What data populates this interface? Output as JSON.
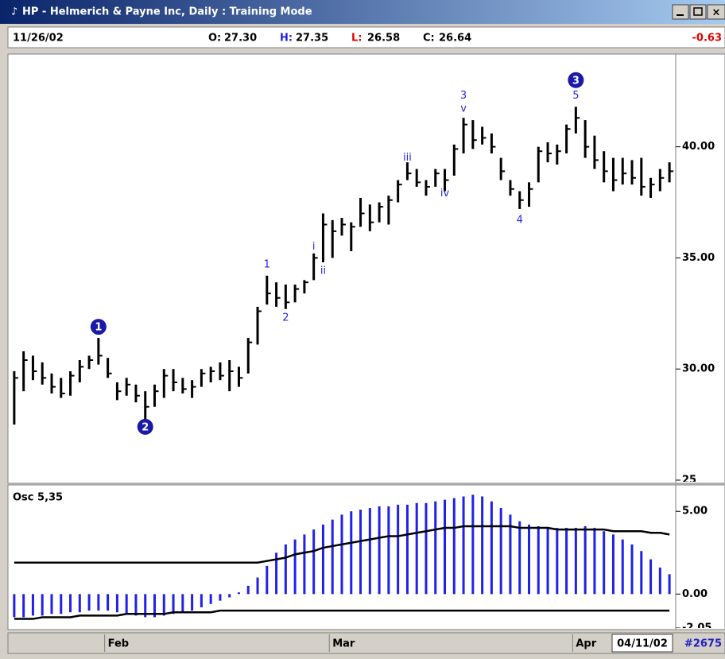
{
  "window": {
    "title": "HP - Helmerich & Payne Inc, Daily : Training Mode"
  },
  "info": {
    "date": "11/26/02",
    "fields": [
      {
        "label": "O:",
        "value": "27.30"
      },
      {
        "label": "H:",
        "value": "27.35"
      },
      {
        "label": "L:",
        "value": "26.58"
      },
      {
        "label": "C:",
        "value": "26.64"
      }
    ],
    "change": "-0.63"
  },
  "footer": {
    "date": "04/11/02",
    "count": "#2675"
  },
  "chart_data": [
    {
      "type": "ohlc",
      "color": "#000000",
      "categories": [
        null,
        null,
        null,
        null,
        null,
        null,
        null,
        null,
        null,
        null,
        "Feb",
        null,
        null,
        null,
        null,
        null,
        null,
        null,
        null,
        null,
        null,
        null,
        null,
        null,
        null,
        null,
        null,
        null,
        null,
        null,
        null,
        null,
        null,
        null,
        "Mar",
        null,
        null,
        null,
        null,
        null,
        null,
        null,
        null,
        null,
        null,
        null,
        null,
        null,
        null,
        null,
        null,
        null,
        null,
        null,
        null,
        null,
        null,
        null,
        null,
        null,
        "Apr",
        null,
        null,
        null,
        null,
        null,
        null,
        null,
        null,
        null,
        null
      ],
      "high": [
        29.9,
        30.8,
        30.6,
        30.3,
        29.8,
        29.6,
        29.9,
        30.4,
        30.6,
        31.4,
        30.5,
        29.4,
        29.6,
        29.3,
        29.0,
        29.3,
        30.0,
        30.0,
        29.6,
        29.5,
        30.0,
        30.1,
        30.3,
        30.4,
        30.1,
        31.4,
        32.8,
        34.2,
        33.9,
        33.8,
        33.8,
        34.0,
        35.2,
        37.0,
        36.7,
        36.8,
        36.6,
        37.7,
        37.4,
        37.5,
        37.8,
        38.5,
        39.3,
        39.0,
        38.5,
        39.0,
        39.0,
        40.1,
        41.3,
        41.2,
        40.9,
        40.6,
        39.5,
        38.5,
        38.0,
        38.4,
        40.0,
        40.2,
        40.1,
        41.0,
        41.8,
        41.2,
        40.5,
        39.8,
        39.5,
        39.5,
        39.4,
        39.5,
        38.6,
        39.0,
        39.3
      ],
      "low": [
        27.5,
        29.0,
        29.5,
        29.3,
        28.9,
        28.7,
        28.8,
        29.4,
        30.0,
        30.2,
        29.6,
        28.6,
        28.8,
        28.5,
        27.7,
        28.3,
        28.7,
        29.0,
        28.9,
        28.7,
        29.2,
        29.4,
        29.5,
        29.0,
        29.2,
        29.8,
        31.1,
        32.9,
        32.8,
        32.7,
        33.0,
        33.4,
        34.0,
        34.8,
        35.0,
        36.0,
        35.3,
        36.4,
        36.2,
        36.6,
        36.5,
        37.5,
        38.5,
        38.2,
        37.8,
        38.2,
        38.0,
        38.7,
        39.7,
        39.9,
        40.1,
        39.7,
        38.5,
        37.8,
        37.2,
        37.3,
        38.4,
        39.3,
        39.2,
        39.7,
        40.6,
        39.5,
        39.0,
        38.4,
        38.0,
        38.3,
        38.3,
        37.8,
        37.7,
        38.0,
        38.4
      ],
      "close": [
        29.6,
        30.4,
        29.9,
        29.6,
        29.2,
        28.9,
        29.7,
        30.1,
        30.4,
        30.6,
        29.8,
        29.0,
        29.3,
        28.8,
        28.3,
        29.0,
        29.7,
        29.4,
        29.1,
        29.2,
        29.8,
        29.9,
        29.7,
        29.9,
        29.6,
        31.2,
        32.6,
        33.4,
        33.2,
        33.0,
        33.6,
        33.9,
        35.0,
        36.5,
        36.2,
        36.5,
        36.4,
        37.0,
        36.6,
        37.3,
        37.6,
        38.3,
        38.8,
        38.4,
        38.2,
        38.8,
        38.5,
        39.9,
        41.0,
        40.3,
        40.4,
        40.0,
        38.9,
        38.1,
        37.6,
        38.1,
        39.8,
        39.7,
        39.8,
        40.8,
        41.3,
        40.0,
        39.4,
        38.9,
        38.5,
        38.8,
        38.6,
        38.2,
        38.3,
        38.6,
        38.9
      ],
      "ylim": [
        25,
        44.1
      ],
      "yticks": [
        {
          "value": 25,
          "label": "25"
        },
        {
          "value": 30,
          "label": "30.00"
        },
        {
          "value": 35,
          "label": "35.00"
        },
        {
          "value": 40,
          "label": "40.00"
        }
      ],
      "annotations": [
        {
          "text": "1",
          "x": 9,
          "y": 31.9,
          "circle": true
        },
        {
          "text": "2",
          "x": 14,
          "y": 27.4,
          "circle": true
        },
        {
          "text": "3",
          "x": 60,
          "y": 43.0,
          "circle": true
        },
        {
          "text": "1",
          "x": 27,
          "y": 34.7
        },
        {
          "text": "2",
          "x": 29,
          "y": 32.3
        },
        {
          "text": "i",
          "x": 32,
          "y": 35.5
        },
        {
          "text": "ii",
          "x": 33,
          "y": 34.4
        },
        {
          "text": "iii",
          "x": 42,
          "y": 39.5
        },
        {
          "text": "iv",
          "x": 46,
          "y": 37.9
        },
        {
          "text": "3",
          "x": 48,
          "y": 42.3
        },
        {
          "text": "v",
          "x": 48,
          "y": 41.7
        },
        {
          "text": "4",
          "x": 54,
          "y": 36.7
        },
        {
          "text": "5",
          "x": 60,
          "y": 42.3
        }
      ]
    },
    {
      "type": "oscillator",
      "title": "Osc 5,35",
      "ylim": [
        -2.05,
        6.5
      ],
      "yticks": [
        {
          "value": 5,
          "label": "5.00"
        },
        {
          "value": 0,
          "label": "0.00"
        },
        {
          "value": -2.05,
          "label": "-2.05"
        }
      ],
      "series": [
        {
          "kind": "histogram",
          "color": "#2020e8",
          "values": [
            -1.4,
            -1.4,
            -1.3,
            -1.3,
            -1.2,
            -1.2,
            -1.1,
            -1.1,
            -1.0,
            -1.0,
            -1.0,
            -1.1,
            -1.2,
            -1.3,
            -1.4,
            -1.4,
            -1.3,
            -1.2,
            -1.1,
            -1.0,
            -0.8,
            -0.6,
            -0.4,
            -0.2,
            0.1,
            0.5,
            1.0,
            1.7,
            2.5,
            3.0,
            3.3,
            3.6,
            3.9,
            4.2,
            4.5,
            4.8,
            5.0,
            5.1,
            5.2,
            5.3,
            5.3,
            5.4,
            5.4,
            5.5,
            5.5,
            5.6,
            5.7,
            5.8,
            5.9,
            6.0,
            5.9,
            5.6,
            5.2,
            4.8,
            4.4,
            4.2,
            4.1,
            4.0,
            4.0,
            4.0,
            4.0,
            4.1,
            4.0,
            3.8,
            3.6,
            3.3,
            3.0,
            2.6,
            2.1,
            1.6,
            1.2
          ]
        },
        {
          "kind": "line",
          "color": "#000000",
          "values": [
            1.9,
            1.9,
            1.9,
            1.9,
            1.9,
            1.9,
            1.9,
            1.9,
            1.9,
            1.9,
            1.9,
            1.9,
            1.9,
            1.9,
            1.9,
            1.9,
            1.9,
            1.9,
            1.9,
            1.9,
            1.9,
            1.9,
            1.9,
            1.9,
            1.9,
            1.9,
            1.9,
            2.0,
            2.1,
            2.2,
            2.4,
            2.5,
            2.6,
            2.8,
            2.9,
            3.0,
            3.1,
            3.2,
            3.3,
            3.4,
            3.5,
            3.5,
            3.6,
            3.7,
            3.8,
            3.9,
            4.0,
            4.0,
            4.1,
            4.1,
            4.1,
            4.1,
            4.1,
            4.1,
            4.0,
            4.0,
            4.0,
            4.0,
            3.9,
            3.9,
            3.9,
            3.9,
            3.9,
            3.9,
            3.8,
            3.8,
            3.8,
            3.8,
            3.7,
            3.7,
            3.6
          ]
        },
        {
          "kind": "line",
          "color": "#000000",
          "values": [
            -1.5,
            -1.5,
            -1.5,
            -1.4,
            -1.4,
            -1.4,
            -1.4,
            -1.3,
            -1.3,
            -1.3,
            -1.3,
            -1.3,
            -1.2,
            -1.2,
            -1.2,
            -1.2,
            -1.2,
            -1.1,
            -1.1,
            -1.1,
            -1.1,
            -1.1,
            -1.0,
            -1.0,
            -1.0,
            -1.0,
            -1.0,
            -1.0,
            -1.0,
            -1.0,
            -1.0,
            -1.0,
            -1.0,
            -1.0,
            -1.0,
            -1.0,
            -1.0,
            -1.0,
            -1.0,
            -1.0,
            -1.0,
            -1.0,
            -1.0,
            -1.0,
            -1.0,
            -1.0,
            -1.0,
            -1.0,
            -1.0,
            -1.0,
            -1.0,
            -1.0,
            -1.0,
            -1.0,
            -1.0,
            -1.0,
            -1.0,
            -1.0,
            -1.0,
            -1.0,
            -1.0,
            -1.0,
            -1.0,
            -1.0,
            -1.0,
            -1.0,
            -1.0,
            -1.0,
            -1.0,
            -1.0,
            -1.0
          ]
        }
      ]
    }
  ]
}
